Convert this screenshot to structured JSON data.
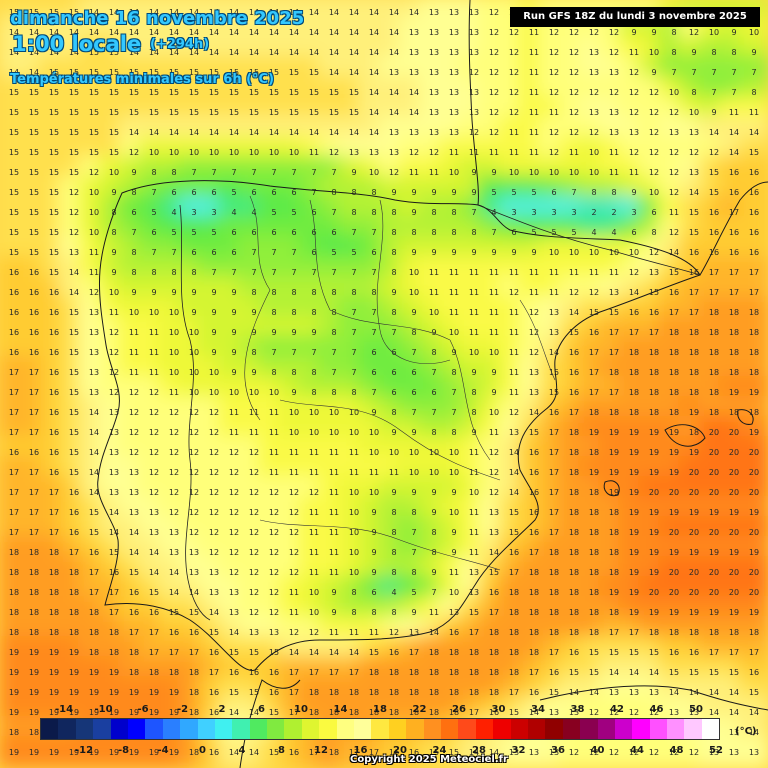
{
  "header": {
    "date": "dimanche 16 novembre 2025",
    "time": "1:00 locale",
    "offset": "(+294h)",
    "parameter": "Températures minimales sur 6h (°C)",
    "run": "Run GFS 18Z du lundi 3 novembre 2025"
  },
  "legend": {
    "unit": "(°C)",
    "top_ticks": [
      "-14",
      "-10",
      "-6",
      "-2",
      "2",
      "6",
      "10",
      "14",
      "18",
      "22",
      "26",
      "30",
      "34",
      "38",
      "42",
      "46",
      "50"
    ],
    "bottom_ticks": [
      "-12",
      "-8",
      "-4",
      "0",
      "4",
      "8",
      "12",
      "16",
      "20",
      "24",
      "28",
      "32",
      "36",
      "40",
      "44",
      "48",
      "52"
    ],
    "colors": [
      "#0b1a4a",
      "#10265e",
      "#163678",
      "#1a3fa0",
      "#0000cc",
      "#0000ff",
      "#1e55ff",
      "#2a7fff",
      "#30a8ff",
      "#40d0ff",
      "#40f0f0",
      "#40f0b0",
      "#50ea60",
      "#80ea40",
      "#b0f030",
      "#dff530",
      "#fafa40",
      "#ffff80",
      "#ffff9a",
      "#ffe840",
      "#ffd020",
      "#ffb020",
      "#ff9020",
      "#ff7010",
      "#ff4a1a",
      "#ff2000",
      "#ee0000",
      "#cc0000",
      "#b00000",
      "#900000",
      "#880020",
      "#8a0050",
      "#a00080",
      "#cc00cc",
      "#ff00ff",
      "#ff50ff",
      "#ff90ff",
      "#ffc8ff",
      "#ffffff"
    ]
  },
  "footer": {
    "copyright": "Copyright 2025 Meteociel.fr"
  },
  "map": {
    "region": "Iberian Peninsula",
    "grid": [
      "15 15 15 15 14 14 14 14 14 14 14 14 14 14 14 14 14 14 14 14 14 13 13 13 12 12 11 12 12 12 12 12 12 10 9 9 9 9",
      "14 14 14 14 14 14 14 14 14 14 14 14 14 14 14 14 14 14 14 14 13 13 13 13 12 12 11 12 12 12 12 9 9 8 12 10 9 10",
      "14 14 14 14 15 15 14 14 14 14 14 14 14 14 14 14 14 14 14 14 13 13 13 13 12 12 11 12 12 13 12 11 10 8 9 8 8 9",
      "14 14 15 15 15 15 15 15 15 15 15 15 15 15 15 15 14 14 14 13 13 13 13 12 12 12 11 12 12 13 13 12 9 7 7 7 7 7",
      "15 15 15 15 15 15 15 15 15 15 15 15 15 15 15 15 15 15 14 14 14 13 13 13 12 12 11 12 12 12 12 12 12 10 8 7 7 8",
      "15 15 15 15 15 15 15 15 15 15 15 15 15 15 15 15 15 15 14 14 14 13 13 13 12 12 11 11 12 13 13 12 12 12 10 9 11 11",
      "15 15 15 15 15 15 14 14 14 14 14 14 14 14 14 14 14 14 14 13 13 13 13 12 12 11 11 12 12 12 13 13 12 13 13 14 14 14",
      "15 15 15 15 15 15 12 10 10 10 10 10 10 10 10 11 12 13 13 13 12 12 11 11 11 11 11 12 11 10 11 12 12 12 12 12 14 15",
      "15 15 15 15 12 10 9 8 8 7 7 7 7 7 7 7 7 9 10 12 11 11 10 9 9 10 10 10 10 10 11 11 12 12 13 15 16 16",
      "15 15 15 12 10 9 8 7 6 6 6 5 6 6 6 7 8 8 8 9 9 9 9 9 5 5 5 6 7 8 8 9 10 12 14 15 16 16",
      "15 15 15 12 10 8 6 5 4 3 3 4 4 5 5 6 7 8 8 8 9 8 8 7 4 3 3 3 3 2 2 3 6 11 15 16 17 16",
      "15 15 15 12 10 8 7 6 5 5 5 6 6 6 6 6 6 7 7 8 8 8 8 8 7 6 5 5 5 4 4 6 8 12 15 16 16 16",
      "15 15 15 13 11 9 8 7 7 6 6 6 7 7 7 6 5 5 6 8 9 9 9 9 9 9 9 10 10 10 10 10 12 14 16 16 16 16",
      "16 16 15 14 11 9 8 8 8 8 7 7 7 7 7 7 7 7 7 8 10 11 11 11 11 11 11 11 11 11 11 12 13 15 16 17 17 17",
      "16 16 16 14 12 10 9 9 9 9 9 9 8 8 8 8 8 8 8 9 10 11 11 11 11 12 11 11 12 12 13 14 15 16 17 17 17 17",
      "16 16 16 15 13 11 10 10 10 9 9 9 9 8 8 8 8 7 7 8 9 10 11 11 11 11 12 13 14 15 15 16 16 17 17 18 18 18",
      "16 16 16 15 13 12 11 11 10 10 9 9 9 9 9 9 8 7 7 7 8 9 10 11 11 11 12 13 15 16 17 17 17 18 18 18 18 18",
      "16 16 16 15 13 12 11 11 10 10 9 9 8 7 7 7 7 7 6 6 7 8 9 10 10 11 12 14 16 17 17 18 18 18 18 18 18 18",
      "17 17 16 15 13 12 11 11 10 10 10 9 9 8 8 8 7 7 6 6 6 7 8 9 9 11 13 15 16 17 18 18 18 18 18 18 18 18",
      "17 17 16 15 13 12 12 12 11 10 10 10 10 10 9 8 8 8 7 6 6 6 7 8 9 11 13 15 16 17 17 18 18 18 18 18 19 19",
      "17 17 16 15 14 13 12 12 12 12 12 11 11 11 10 10 10 10 9 8 7 7 7 8 10 12 14 16 17 18 18 18 18 18 19 18 18 18",
      "17 17 16 15 14 13 12 12 12 12 12 11 11 11 10 10 10 10 10 9 9 8 8 9 11 13 15 17 18 19 19 19 19 19 18 20 20 19",
      "16 16 16 15 14 13 12 12 12 12 12 12 12 11 11 11 11 11 10 10 10 10 10 11 12 14 16 17 18 18 19 19 19 19 19 20 20 20",
      "17 17 16 15 14 13 13 12 12 12 12 12 12 11 11 11 11 11 11 11 10 10 10 11 12 14 16 17 18 19 19 19 19 19 20 20 20 20",
      "17 17 17 16 14 13 13 12 12 12 12 12 12 12 12 12 11 10 10 9 9 9 9 10 12 14 16 17 18 18 19 19 20 20 20 20 20 20",
      "17 17 17 16 15 14 13 13 12 12 12 12 12 12 12 11 11 10 9 8 8 9 10 11 13 15 16 17 18 18 18 19 19 19 19 19 19 19",
      "17 17 17 16 15 14 14 13 13 12 12 12 12 12 12 11 11 10 9 8 7 8 9 11 13 15 16 17 18 18 18 19 19 20 20 20 20 20",
      "18 18 18 17 16 15 14 14 13 13 12 12 12 12 12 11 11 10 9 8 7 8 9 11 14 16 17 18 18 18 18 19 19 19 19 19 19 19",
      "18 18 18 18 17 16 15 14 14 13 13 12 12 12 12 11 11 10 9 8 8 9 11 13 15 17 18 18 18 18 18 19 19 20 20 20 20 20",
      "18 18 18 18 17 17 16 15 14 14 13 13 12 12 11 10 9 8 6 4 5 7 10 13 16 18 18 18 18 18 19 19 20 20 20 20 20 20",
      "18 18 18 18 18 17 16 16 15 15 14 13 12 12 11 10 9 8 8 8 9 11 13 15 17 18 18 18 18 18 18 19 19 19 19 19 19 19",
      "18 18 18 18 18 18 17 17 16 16 15 14 13 13 12 12 11 11 11 12 13 14 16 17 18 18 18 18 18 18 17 17 18 18 18 18 18 18",
      "19 19 19 19 18 18 18 17 17 17 16 15 15 15 14 14 14 14 15 16 17 18 18 18 18 18 18 17 16 15 15 15 15 16 16 17 17 17",
      "19 19 19 19 19 19 18 18 18 18 17 16 16 16 17 17 17 17 18 18 18 18 18 18 18 18 17 16 15 15 14 14 14 15 15 15 15 16",
      "19 19 19 19 19 19 19 19 19 18 16 15 15 16 17 18 18 18 18 18 18 18 18 18 18 17 16 15 14 14 13 13 13 14 14 14 14 15",
      "19 19 19 19 19 19 19 19 19 18 16 14 14 15 17 18 18 18 18 18 18 18 18 17 16 15 14 13 13 12 12 12 12 13 13 14 14 14",
      "18 18 18 18 19 19 19 19 19 18 15 13 13 14 16 17 18 18 18 17 17 17 16 15 14 14 13 13 12 12 12 12 12 12 13 13 13 14",
      "19 19 19 19 19 19 19 19 19 18 16 14 14 15 16 17 18 17 17 16 16 15 15 14 14 13 13 13 12 12 12 12 12 12 12 13 13 13"
    ]
  }
}
